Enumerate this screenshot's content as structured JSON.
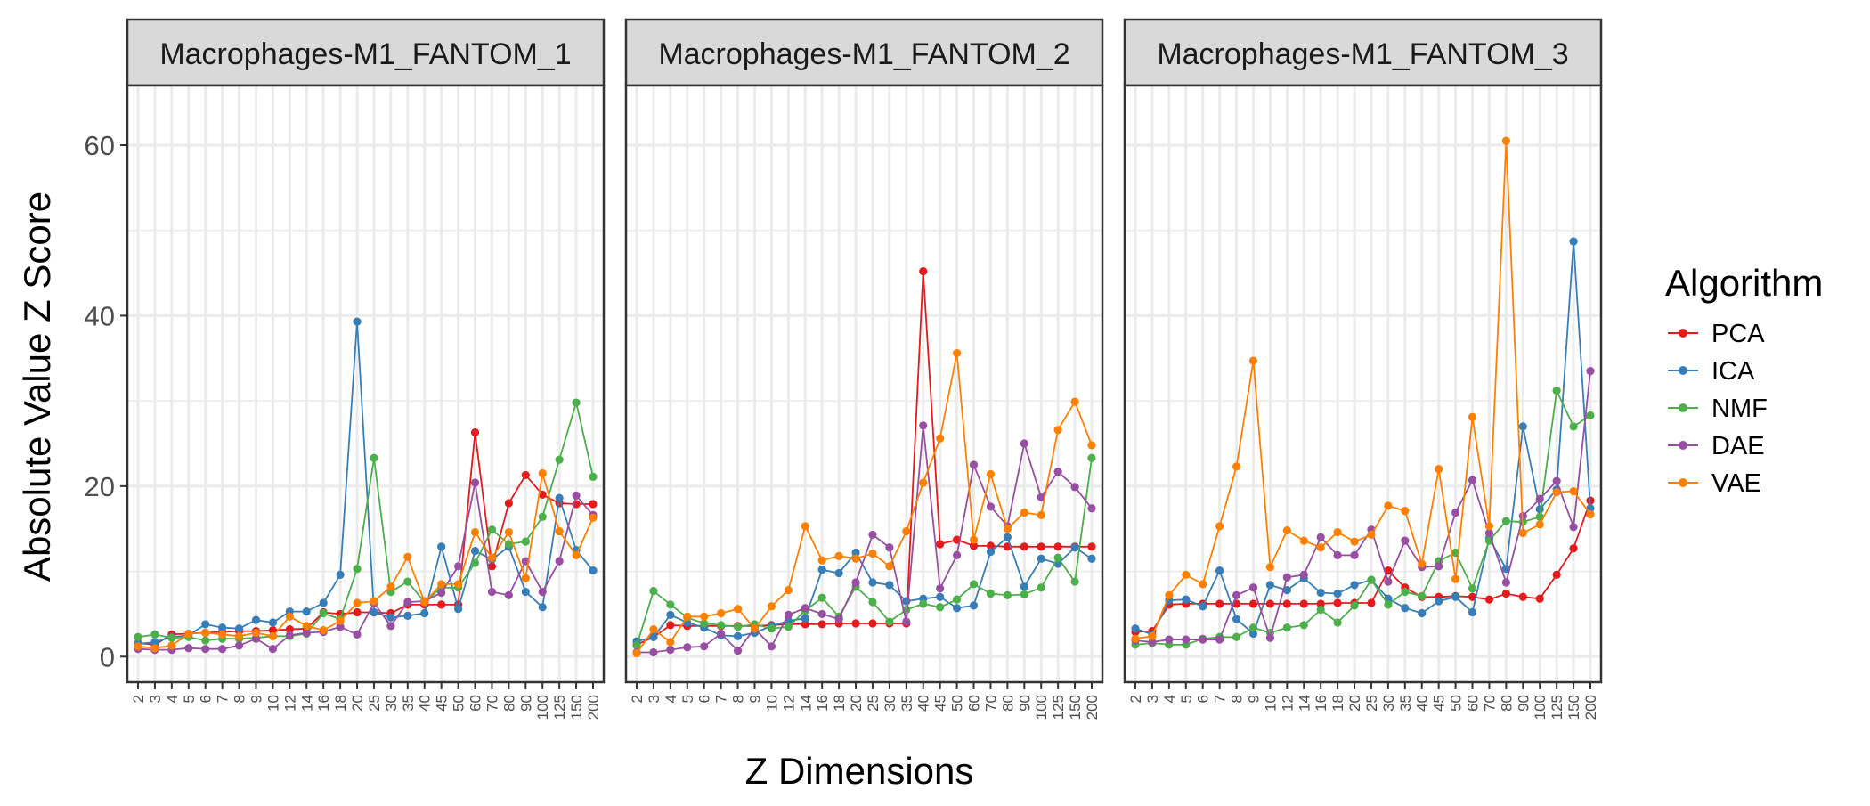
{
  "chart_data": {
    "type": "line",
    "xlabel": "Z Dimensions",
    "ylabel": "Absolute Value Z Score",
    "ylim": [
      -3,
      67
    ],
    "yticks": [
      0,
      20,
      40,
      60
    ],
    "grid": true,
    "legend_title": "Algorithm",
    "legend_placement": "right",
    "categories": [
      "2",
      "3",
      "4",
      "5",
      "6",
      "7",
      "8",
      "9",
      "10",
      "12",
      "14",
      "16",
      "18",
      "20",
      "25",
      "30",
      "35",
      "40",
      "45",
      "50",
      "60",
      "70",
      "80",
      "90",
      "100",
      "125",
      "150",
      "200"
    ],
    "series_meta": [
      {
        "name": "PCA",
        "color": "#e41a1c"
      },
      {
        "name": "ICA",
        "color": "#377eb8"
      },
      {
        "name": "NMF",
        "color": "#4daf4a"
      },
      {
        "name": "DAE",
        "color": "#984ea3"
      },
      {
        "name": "VAE",
        "color": "#ff7f00"
      }
    ],
    "panels": [
      {
        "title": "Macrophages-M1_FANTOM_1",
        "series": {
          "PCA": [
            1.6,
            1.4,
            2.6,
            2.7,
            2.8,
            2.9,
            3.0,
            3.0,
            3.1,
            3.2,
            3.3,
            5.2,
            5.0,
            5.2,
            5.2,
            5.1,
            6.1,
            6.1,
            6.1,
            6.1,
            26.3,
            10.6,
            18.0,
            21.3,
            19.0,
            18.0,
            17.9,
            17.9
          ],
          "ICA": [
            1.5,
            1.7,
            2.3,
            2.5,
            3.8,
            3.4,
            3.3,
            4.3,
            4.0,
            5.3,
            5.3,
            6.3,
            9.6,
            39.3,
            5.2,
            4.6,
            4.8,
            5.1,
            12.9,
            5.6,
            12.4,
            11.4,
            12.9,
            7.6,
            5.8,
            18.6,
            12.5,
            10.1
          ],
          "NMF": [
            2.3,
            2.6,
            2.2,
            2.3,
            1.9,
            2.1,
            2.1,
            2.2,
            2.4,
            2.4,
            2.7,
            5.1,
            4.4,
            10.3,
            23.3,
            7.6,
            8.8,
            6.4,
            8.1,
            8.1,
            11.0,
            14.9,
            13.2,
            13.5,
            16.4,
            23.1,
            29.8,
            21.1
          ],
          "DAE": [
            0.9,
            0.8,
            0.8,
            1.0,
            0.9,
            0.9,
            1.3,
            2.1,
            0.9,
            2.5,
            2.8,
            2.9,
            3.5,
            2.6,
            6.3,
            3.6,
            6.4,
            6.5,
            7.5,
            10.6,
            20.4,
            7.6,
            7.2,
            11.2,
            7.6,
            11.2,
            18.9,
            16.6
          ],
          "VAE": [
            1.2,
            1.0,
            1.3,
            2.7,
            2.8,
            2.6,
            2.4,
            2.8,
            2.4,
            4.7,
            3.6,
            3.1,
            4.2,
            6.3,
            6.5,
            8.2,
            11.7,
            6.4,
            8.5,
            8.5,
            14.6,
            11.6,
            14.6,
            9.2,
            21.5,
            14.7,
            11.9,
            16.3
          ]
        }
      },
      {
        "title": "Macrophages-M1_FANTOM_2",
        "series": {
          "PCA": [
            1.4,
            2.3,
            3.7,
            3.6,
            3.6,
            3.6,
            3.6,
            3.6,
            3.7,
            3.8,
            3.8,
            3.8,
            3.9,
            3.9,
            3.9,
            3.9,
            3.9,
            45.2,
            13.2,
            13.7,
            13.0,
            13.0,
            12.9,
            12.9,
            12.9,
            12.9,
            12.9,
            12.9
          ],
          "ICA": [
            1.8,
            2.3,
            4.9,
            4.0,
            3.4,
            2.5,
            2.4,
            2.8,
            3.6,
            4.2,
            4.5,
            10.2,
            9.8,
            12.2,
            8.7,
            8.4,
            6.5,
            6.8,
            7.0,
            5.7,
            6.0,
            12.3,
            14.0,
            8.2,
            11.5,
            10.9,
            12.8,
            11.5
          ],
          "NMF": [
            1.3,
            7.7,
            6.1,
            4.6,
            3.9,
            3.7,
            3.5,
            3.8,
            3.3,
            3.5,
            5.4,
            6.9,
            4.7,
            8.2,
            6.4,
            4.1,
            5.5,
            6.2,
            5.8,
            6.7,
            8.5,
            7.4,
            7.2,
            7.3,
            8.1,
            11.6,
            8.8,
            23.3
          ],
          "DAE": [
            0.5,
            0.5,
            0.8,
            1.1,
            1.2,
            2.7,
            0.7,
            3.3,
            1.2,
            4.9,
            5.7,
            5.0,
            4.4,
            8.7,
            14.3,
            12.8,
            4.1,
            27.1,
            8.0,
            11.9,
            22.5,
            17.6,
            15.3,
            25.0,
            18.7,
            21.7,
            19.9,
            17.4
          ],
          "VAE": [
            0.4,
            3.2,
            1.7,
            4.7,
            4.7,
            5.1,
            5.6,
            3.3,
            5.9,
            7.8,
            15.3,
            11.3,
            11.8,
            11.5,
            12.1,
            10.6,
            14.7,
            20.4,
            25.6,
            35.6,
            13.7,
            21.4,
            15.0,
            16.9,
            16.6,
            26.6,
            29.9,
            24.8
          ]
        }
      },
      {
        "title": "Macrophages-M1_FANTOM_3",
        "series": {
          "PCA": [
            2.9,
            3.0,
            6.1,
            6.2,
            6.2,
            6.2,
            6.2,
            6.2,
            6.2,
            6.2,
            6.2,
            6.2,
            6.3,
            6.3,
            6.3,
            10.1,
            8.1,
            7.0,
            7.0,
            7.1,
            7.0,
            6.7,
            7.4,
            7.0,
            6.8,
            9.6,
            12.7,
            18.3
          ],
          "ICA": [
            3.3,
            2.6,
            6.6,
            6.7,
            5.9,
            10.1,
            4.4,
            2.7,
            8.4,
            7.8,
            9.2,
            7.5,
            7.4,
            8.4,
            9.0,
            6.8,
            5.7,
            5.1,
            6.5,
            7.0,
            5.2,
            13.9,
            10.3,
            27.0,
            17.3,
            19.6,
            48.7,
            17.4
          ],
          "NMF": [
            1.4,
            1.6,
            1.4,
            1.4,
            2.1,
            2.3,
            2.3,
            3.4,
            2.8,
            3.4,
            3.7,
            5.5,
            4.0,
            6.0,
            9.0,
            6.1,
            7.6,
            7.1,
            11.2,
            12.2,
            8.0,
            13.6,
            15.9,
            15.8,
            16.4,
            31.2,
            27.0,
            28.3
          ],
          "DAE": [
            1.9,
            1.7,
            2.0,
            2.0,
            2.0,
            2.0,
            7.2,
            8.1,
            2.2,
            9.3,
            9.6,
            14.0,
            11.9,
            11.9,
            14.9,
            8.8,
            13.6,
            10.5,
            10.6,
            16.9,
            20.7,
            14.5,
            8.7,
            16.5,
            18.5,
            20.6,
            15.2,
            33.5
          ],
          "VAE": [
            2.1,
            2.4,
            7.2,
            9.6,
            8.5,
            15.3,
            22.3,
            34.7,
            10.5,
            14.8,
            13.6,
            12.8,
            14.6,
            13.5,
            14.3,
            17.7,
            17.1,
            10.9,
            22.0,
            9.1,
            28.1,
            15.3,
            60.5,
            14.5,
            15.5,
            19.3,
            19.4,
            16.7
          ]
        }
      }
    ]
  }
}
